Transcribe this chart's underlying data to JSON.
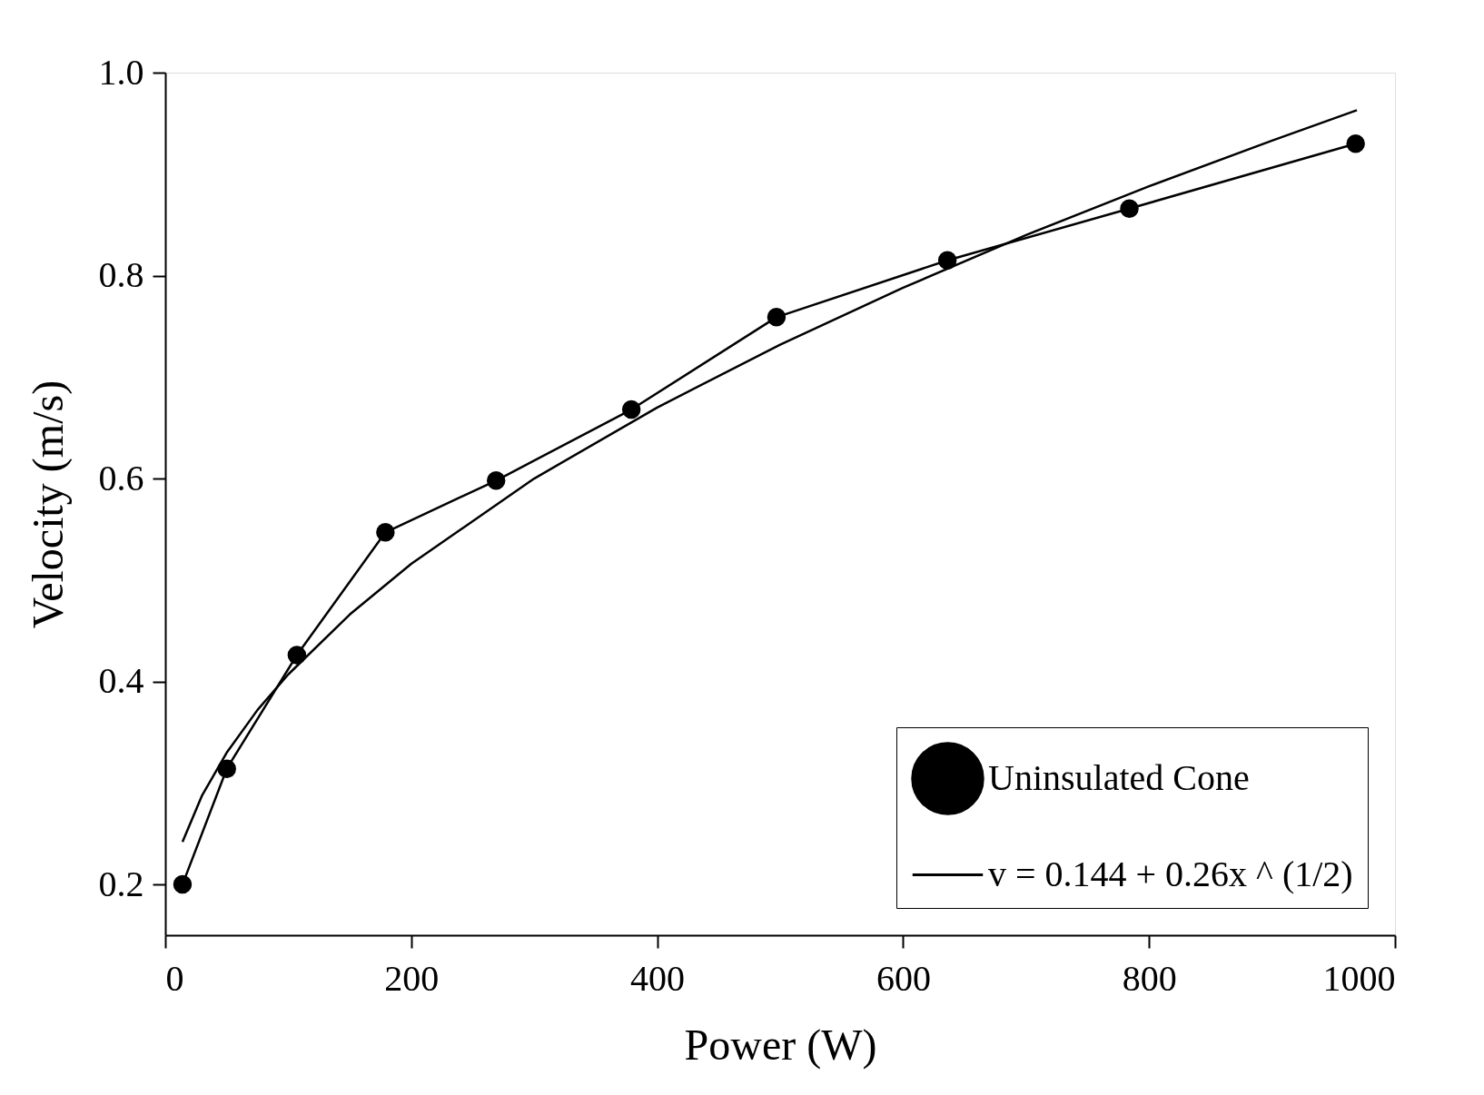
{
  "chart_data": {
    "type": "line",
    "xlabel": "Power (W)",
    "ylabel": "Velocity (m/s)",
    "xlim": [
      0,
      1000
    ],
    "xticks": [
      0,
      200,
      400,
      600,
      800,
      1000
    ],
    "ylim": [
      0.15,
      1.0
    ],
    "yticks": [
      0.2,
      0.4,
      0.6,
      0.8,
      {
        "value": 1.0,
        "label": "1.0"
      }
    ],
    "grid": false,
    "legend": "bottom right",
    "line_style": "solid",
    "series": [
      {
        "name": "Uninsulated Cone",
        "color": "#000000",
        "marker": "circle",
        "x": [
          14,
          50,
          107,
          179,
          269,
          379,
          497,
          636,
          784,
          968
        ],
        "values": [
          0.2,
          0.314,
          0.426,
          0.547,
          0.598,
          0.668,
          0.759,
          0.815,
          0.866,
          0.93
        ]
      },
      {
        "name": "v = 0.144 + 0.26x ^ (1/2)",
        "type": "line",
        "color": "#000000",
        "marker": "none",
        "x": [
          14,
          30,
          50,
          75,
          100,
          150,
          200,
          300,
          400,
          500,
          600,
          700,
          800,
          900,
          969
        ],
        "values": [
          0.242,
          0.288,
          0.33,
          0.372,
          0.407,
          0.466,
          0.516,
          0.6,
          0.67,
          0.732,
          0.788,
          0.84,
          0.888,
          0.933,
          0.963
        ]
      }
    ]
  }
}
